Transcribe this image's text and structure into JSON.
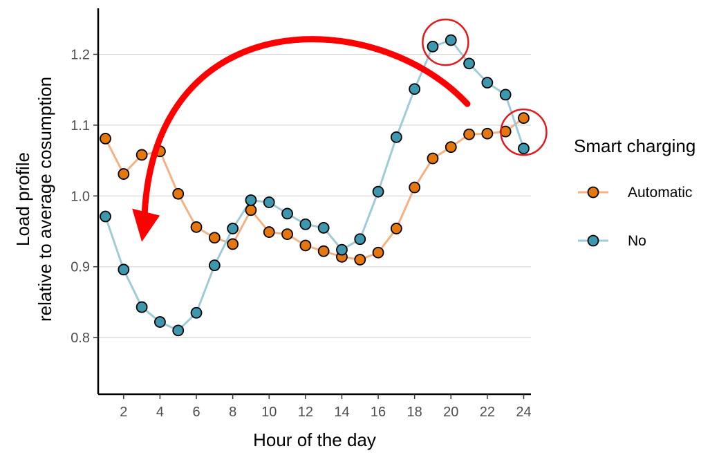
{
  "chart_data": {
    "type": "line",
    "xlabel": "Hour of the day",
    "ylabel_line1": "Load profile",
    "ylabel_line2": "relative to average cosumption",
    "x": [
      1,
      2,
      3,
      4,
      5,
      6,
      7,
      8,
      9,
      10,
      11,
      12,
      13,
      14,
      15,
      16,
      17,
      18,
      19,
      20,
      21,
      22,
      23,
      24
    ],
    "x_ticks": [
      2,
      4,
      6,
      8,
      10,
      12,
      14,
      16,
      18,
      20,
      22,
      24
    ],
    "y_ticks": [
      0.8,
      0.9,
      1.0,
      1.1,
      1.2
    ],
    "y_tick_labels": [
      "0.8",
      "0.9",
      "1.0",
      "1.1",
      "1.2"
    ],
    "x_tick_labels": [
      "2",
      "4",
      "6",
      "8",
      "10",
      "12",
      "14",
      "16",
      "18",
      "20",
      "22",
      "24"
    ],
    "xlim": [
      0.6,
      24.4
    ],
    "ylim": [
      0.72,
      1.265
    ],
    "grid": "horizontal major",
    "legend": {
      "title": "Smart charging",
      "placement": "right"
    },
    "series": [
      {
        "name": "Automatic",
        "line_color": "#f4b183",
        "fill_color": "#e6770f",
        "values": [
          1.081,
          1.031,
          1.058,
          1.063,
          1.003,
          0.956,
          0.941,
          0.932,
          0.98,
          0.949,
          0.946,
          0.93,
          0.922,
          0.914,
          0.91,
          0.92,
          0.954,
          1.012,
          1.053,
          1.069,
          1.087,
          1.088,
          1.091,
          1.11
        ]
      },
      {
        "name": "No",
        "line_color": "#9fcbd8",
        "fill_color": "#3d97ae",
        "values": [
          0.971,
          0.896,
          0.843,
          0.822,
          0.81,
          0.835,
          0.902,
          0.954,
          0.994,
          0.991,
          0.975,
          0.96,
          0.955,
          0.924,
          0.939,
          1.006,
          1.083,
          1.151,
          1.211,
          1.22,
          1.187,
          1.16,
          1.143,
          1.067
        ]
      }
    ],
    "annotations": {
      "circles": [
        {
          "x": 19.7,
          "y": 1.217,
          "color": "#e31a1c"
        },
        {
          "x": 24.0,
          "y": 1.09,
          "color": "#e31a1c"
        }
      ],
      "arrow": {
        "from": {
          "x": 20.9,
          "y": 1.13
        },
        "to": {
          "x": 3.0,
          "y": 0.945
        },
        "color": "#ff0000"
      }
    }
  }
}
